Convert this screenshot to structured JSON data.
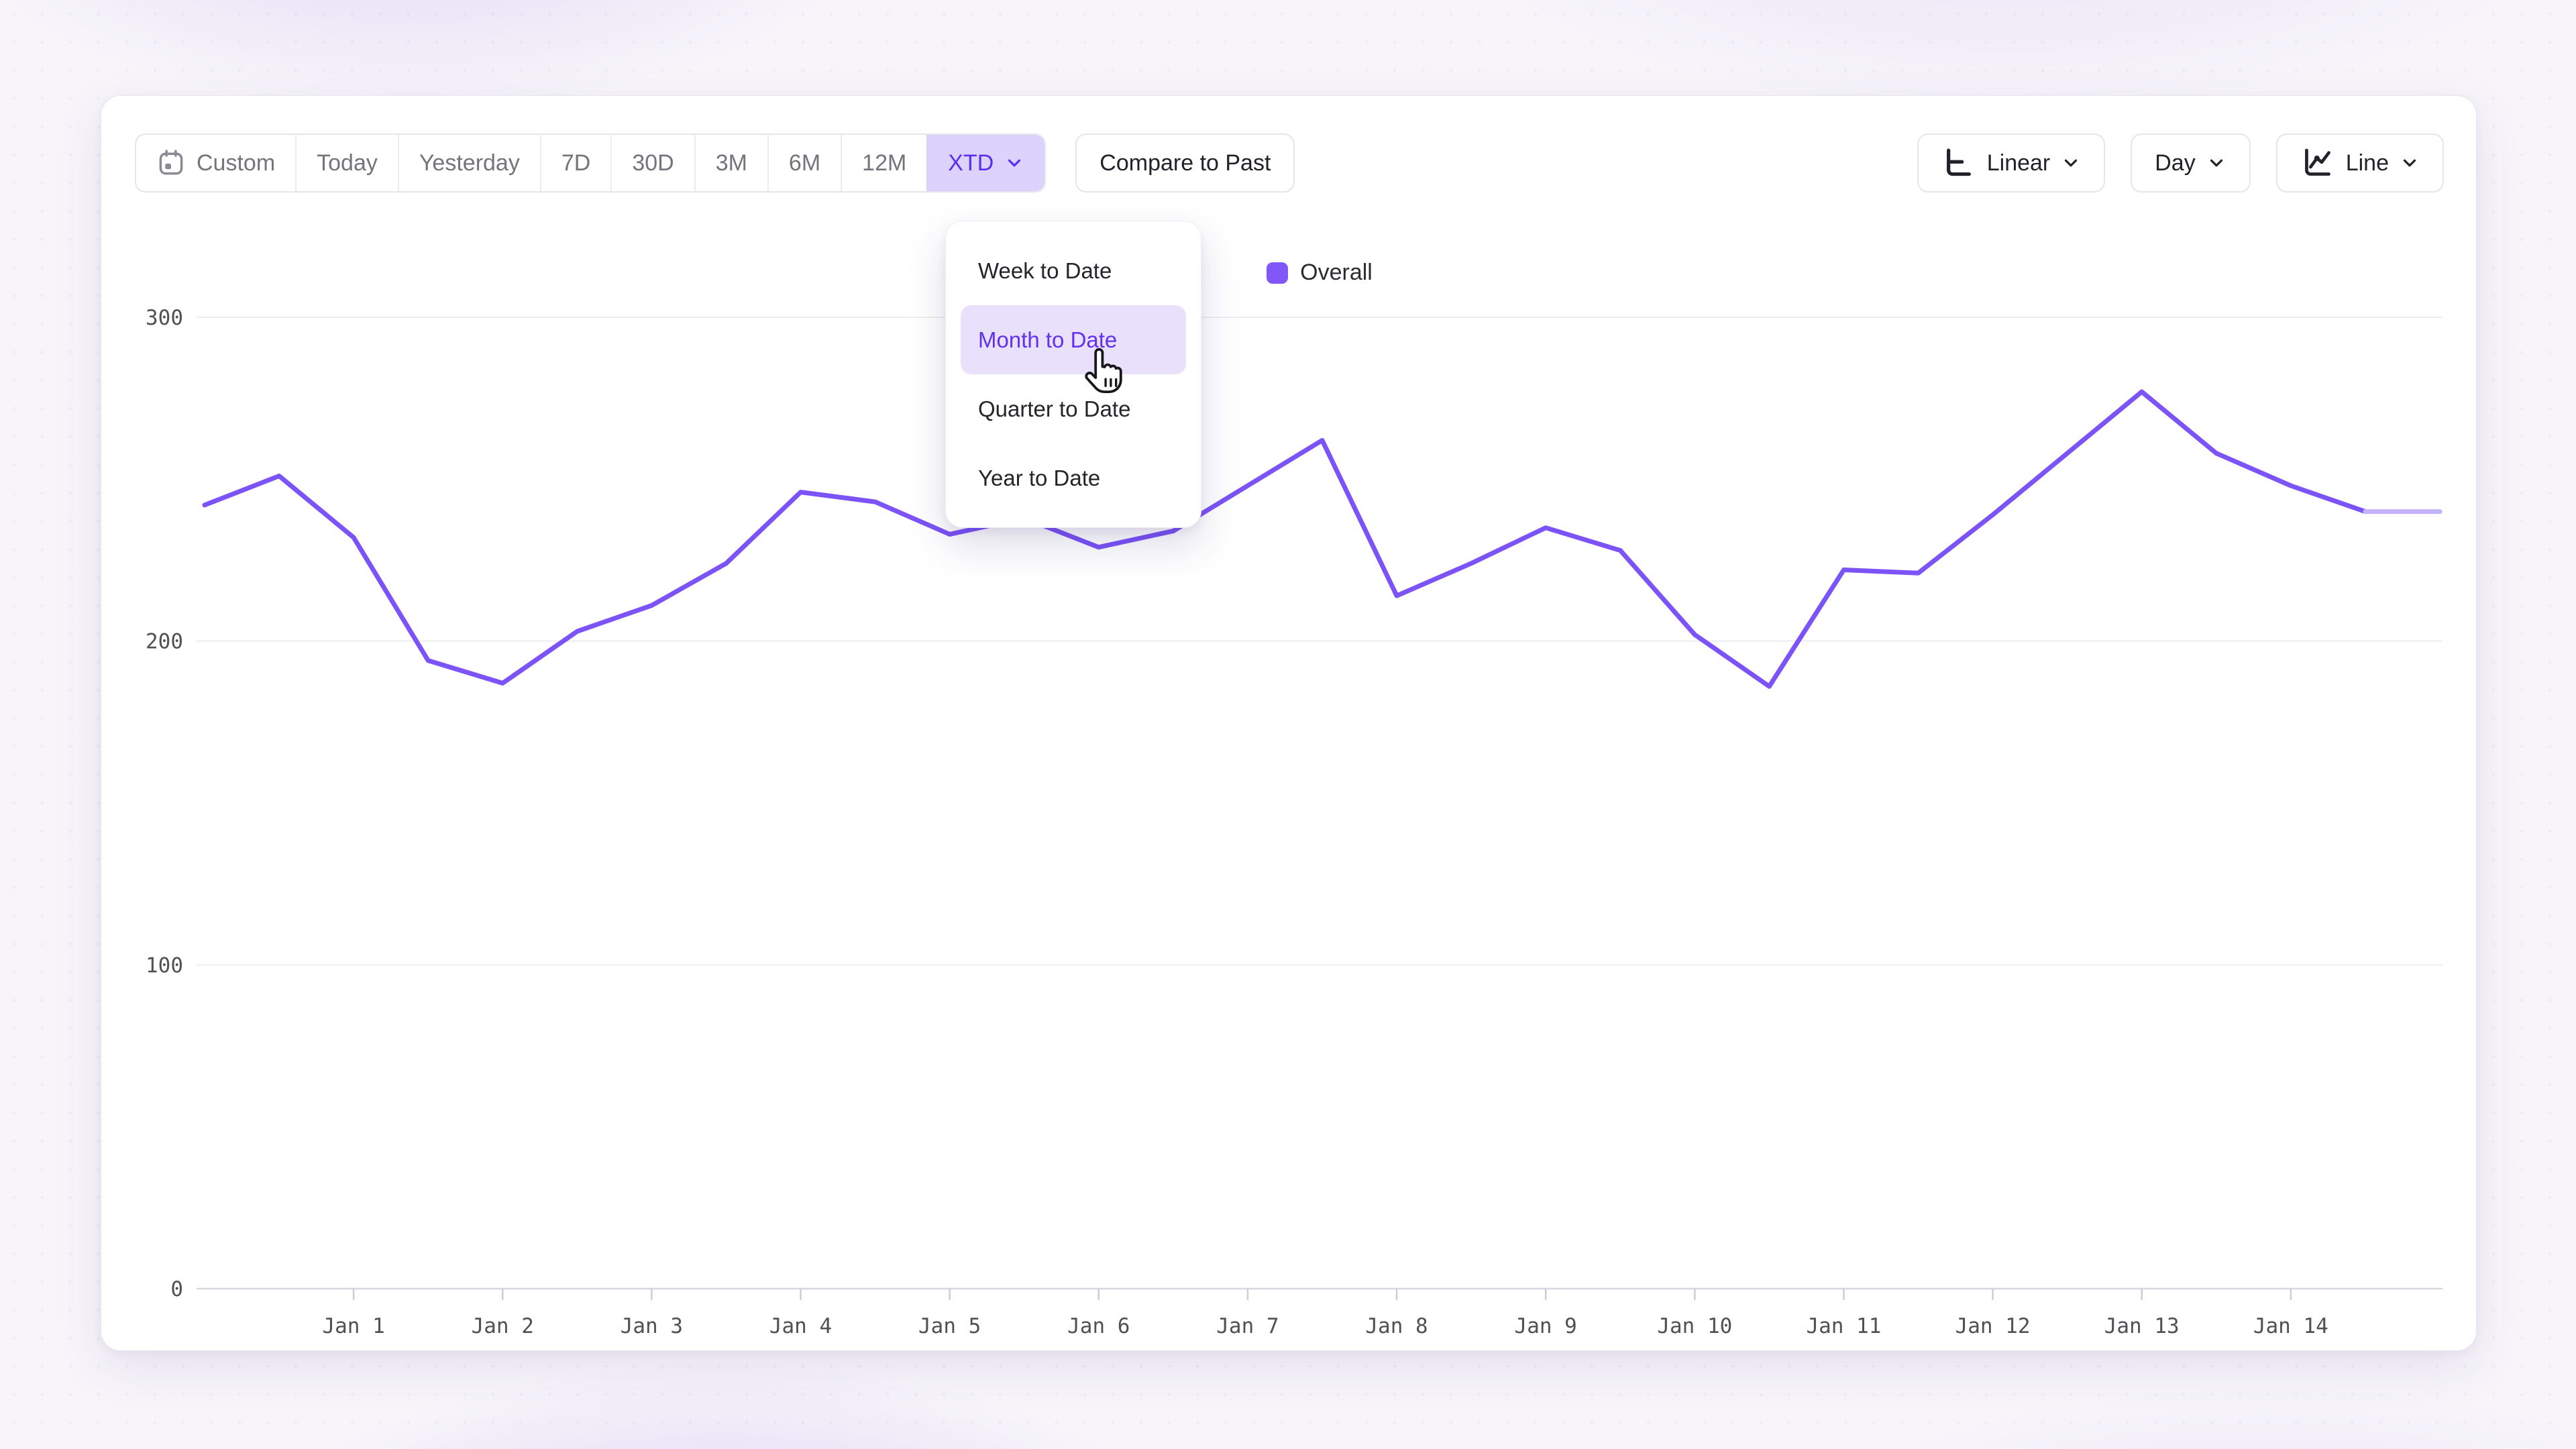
{
  "toolbar": {
    "date_ranges": [
      "Custom",
      "Today",
      "Yesterday",
      "7D",
      "30D",
      "3M",
      "6M",
      "12M",
      "XTD"
    ],
    "selected_range": "XTD",
    "compare_button": "Compare to Past",
    "scale_selector": "Linear",
    "granularity_selector": "Day",
    "chart_type_selector": "Line"
  },
  "range_dropdown": {
    "items": [
      "Week to Date",
      "Month to Date",
      "Quarter to Date",
      "Year to Date"
    ],
    "highlighted_item": "Month to Date"
  },
  "legend": {
    "series_label": "Overall",
    "swatch_color": "#8158f7"
  },
  "colors": {
    "accent_text": "#5a2df4",
    "selected_range_bg": "#ddd2fb",
    "highlight_item_bg": "#e9e1fc",
    "line": "#7b53f6",
    "line_incomplete": "#c4b2fa"
  },
  "chart_data": {
    "type": "line",
    "title": "",
    "series": [
      {
        "name": "Overall",
        "color": "#7b53f6",
        "values": [
          242,
          251,
          232,
          194,
          187,
          203,
          211,
          224,
          246,
          243,
          233,
          238,
          229,
          234,
          248,
          262,
          214,
          224,
          235,
          228,
          202,
          186,
          222,
          221,
          239,
          258,
          277,
          258,
          248,
          240,
          240
        ]
      }
    ],
    "points_per_day": 2,
    "x_tick_labels": [
      "Jan 1",
      "Jan 2",
      "Jan 3",
      "Jan 4",
      "Jan 5",
      "Jan 6",
      "Jan 7",
      "Jan 8",
      "Jan 9",
      "Jan 10",
      "Jan 11",
      "Jan 12",
      "Jan 13",
      "Jan 14"
    ],
    "x_tick_point_indices": [
      2,
      4,
      6,
      8,
      10,
      12,
      14,
      16,
      18,
      20,
      22,
      24,
      26,
      28
    ],
    "ylim": [
      0,
      300
    ],
    "yticks": [
      0,
      100,
      200,
      300
    ],
    "grid": "horizontal",
    "legend_position": "top-center",
    "incomplete_last_segment": true
  }
}
